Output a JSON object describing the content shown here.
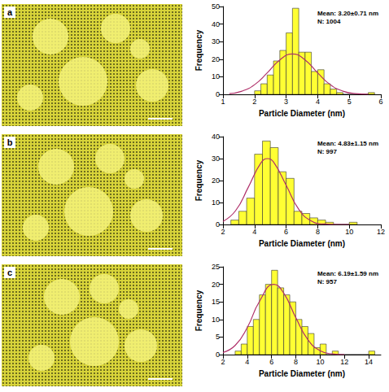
{
  "chart_data": [
    {
      "type": "histogram",
      "panel": "a",
      "x_label": "Particle Diameter (nm)",
      "y_label": "Frequency",
      "annotations": [
        "Mean: 3.20±0.71 nm",
        "N: 1004"
      ],
      "color": "#ffff33",
      "grid": false,
      "bins": [
        2.0,
        2.2,
        2.4,
        2.6,
        2.8,
        3.0,
        3.2,
        3.4,
        3.6,
        3.8,
        4.0,
        4.2,
        4.4,
        4.6,
        4.8,
        5.0,
        5.2,
        5.4,
        5.6,
        5.8
      ],
      "counts": [
        2,
        6,
        11,
        19,
        25,
        35,
        49,
        24,
        24,
        13,
        14,
        6,
        3,
        1,
        0,
        0,
        0,
        0,
        1
      ],
      "fit": {
        "color": "#b0306a",
        "x": [
          1.2,
          1.6,
          2.0,
          2.4,
          2.8,
          3.2,
          3.6,
          4.0,
          4.4,
          4.8,
          5.2,
          5.6
        ],
        "y": [
          0.4,
          1.8,
          5.5,
          12.2,
          19.6,
          23,
          19.6,
          12.2,
          5.5,
          1.8,
          0.4,
          0.1
        ]
      },
      "xlim": [
        1,
        6
      ],
      "xticks": [
        1,
        2,
        3,
        4,
        5,
        6
      ],
      "ylim": [
        0,
        50
      ],
      "yticks": [
        0,
        10,
        20,
        30,
        40,
        50
      ]
    },
    {
      "type": "histogram",
      "panel": "b",
      "x_label": "Particle Diameter (nm)",
      "y_label": "Frequency",
      "annotations": [
        "Mean: 4.83±1.15 nm",
        "N: 997"
      ],
      "color": "#ffff33",
      "grid": false,
      "bins": [
        2.5,
        3.0,
        3.5,
        4.0,
        4.5,
        5.0,
        5.5,
        6.0,
        6.5,
        7.0,
        7.5,
        8.0,
        8.5,
        9.0,
        9.5,
        10.0,
        10.5
      ],
      "counts": [
        2,
        6,
        12,
        32,
        38,
        35,
        24,
        21,
        6,
        5,
        3,
        2,
        1,
        0,
        0,
        1
      ],
      "fit": {
        "color": "#b0306a",
        "x": [
          2.0,
          2.8,
          3.6,
          4.4,
          4.83,
          5.2,
          6.0,
          6.8,
          7.6,
          8.4,
          9.2,
          10.0
        ],
        "y": [
          1.4,
          6.3,
          16.9,
          28.0,
          30,
          28.5,
          17.9,
          6.9,
          1.6,
          0.2,
          0,
          0
        ]
      },
      "xlim": [
        2,
        12
      ],
      "xticks": [
        2,
        4,
        6,
        8,
        10,
        12
      ],
      "ylim": [
        0,
        40
      ],
      "yticks": [
        0,
        10,
        20,
        30,
        40
      ]
    },
    {
      "type": "histogram",
      "panel": "c",
      "x_label": "Particle Diameter (nm)",
      "y_label": "Frequency",
      "annotations": [
        "Mean: 6.19±1.59 nm",
        "N: 957"
      ],
      "color": "#ffff33",
      "grid": false,
      "bins": [
        3.0,
        3.5,
        4.0,
        4.5,
        5.0,
        5.5,
        6.0,
        6.5,
        7.0,
        7.5,
        8.0,
        8.5,
        9.0,
        9.5,
        10.0,
        10.5,
        11.0,
        11.5,
        12.0,
        12.5,
        13.0,
        13.5,
        14.0,
        14.5
      ],
      "counts": [
        1,
        3,
        8,
        10,
        17,
        20,
        24,
        19,
        17,
        15,
        10,
        8,
        6,
        2,
        3,
        0,
        1,
        0,
        0,
        0,
        0,
        0,
        1
      ],
      "fit": {
        "color": "#b0306a",
        "x": [
          2,
          3,
          4,
          5,
          6.19,
          7,
          8,
          9,
          10,
          11,
          12
        ],
        "y": [
          0.6,
          2.6,
          7.7,
          15.1,
          20,
          17.5,
          10.5,
          4.2,
          1.1,
          0.2,
          0
        ]
      },
      "xlim": [
        2,
        15
      ],
      "xticks": [
        2,
        4,
        6,
        8,
        10,
        12,
        14
      ],
      "ylim": [
        0,
        25
      ],
      "yticks": [
        0,
        5,
        10,
        15,
        20,
        25
      ]
    }
  ]
}
